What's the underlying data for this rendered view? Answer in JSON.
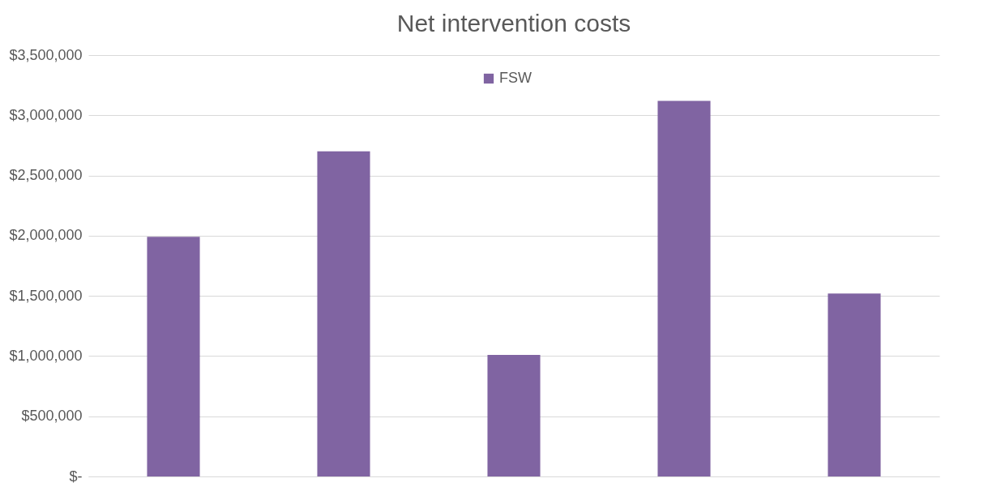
{
  "chart_data": {
    "type": "bar",
    "title": "Net intervention costs",
    "categories": [
      null,
      null,
      null,
      null,
      null
    ],
    "series": [
      {
        "name": "FSW",
        "color": "#8064a2",
        "values": [
          1990000,
          2700000,
          1010000,
          3120000,
          1520000
        ]
      }
    ],
    "ylim": [
      0,
      3500000
    ],
    "yticks": [
      {
        "value": 0,
        "label": "$-"
      },
      {
        "value": 500000,
        "label": "$500,000"
      },
      {
        "value": 1000000,
        "label": "$1,000,000"
      },
      {
        "value": 1500000,
        "label": "$1,500,000"
      },
      {
        "value": 2000000,
        "label": "$2,000,000"
      },
      {
        "value": 2500000,
        "label": "$2,500,000"
      },
      {
        "value": 3000000,
        "label": "$3,000,000"
      },
      {
        "value": 3500000,
        "label": "$3,500,000"
      }
    ],
    "grid": "y",
    "legend": "top"
  }
}
